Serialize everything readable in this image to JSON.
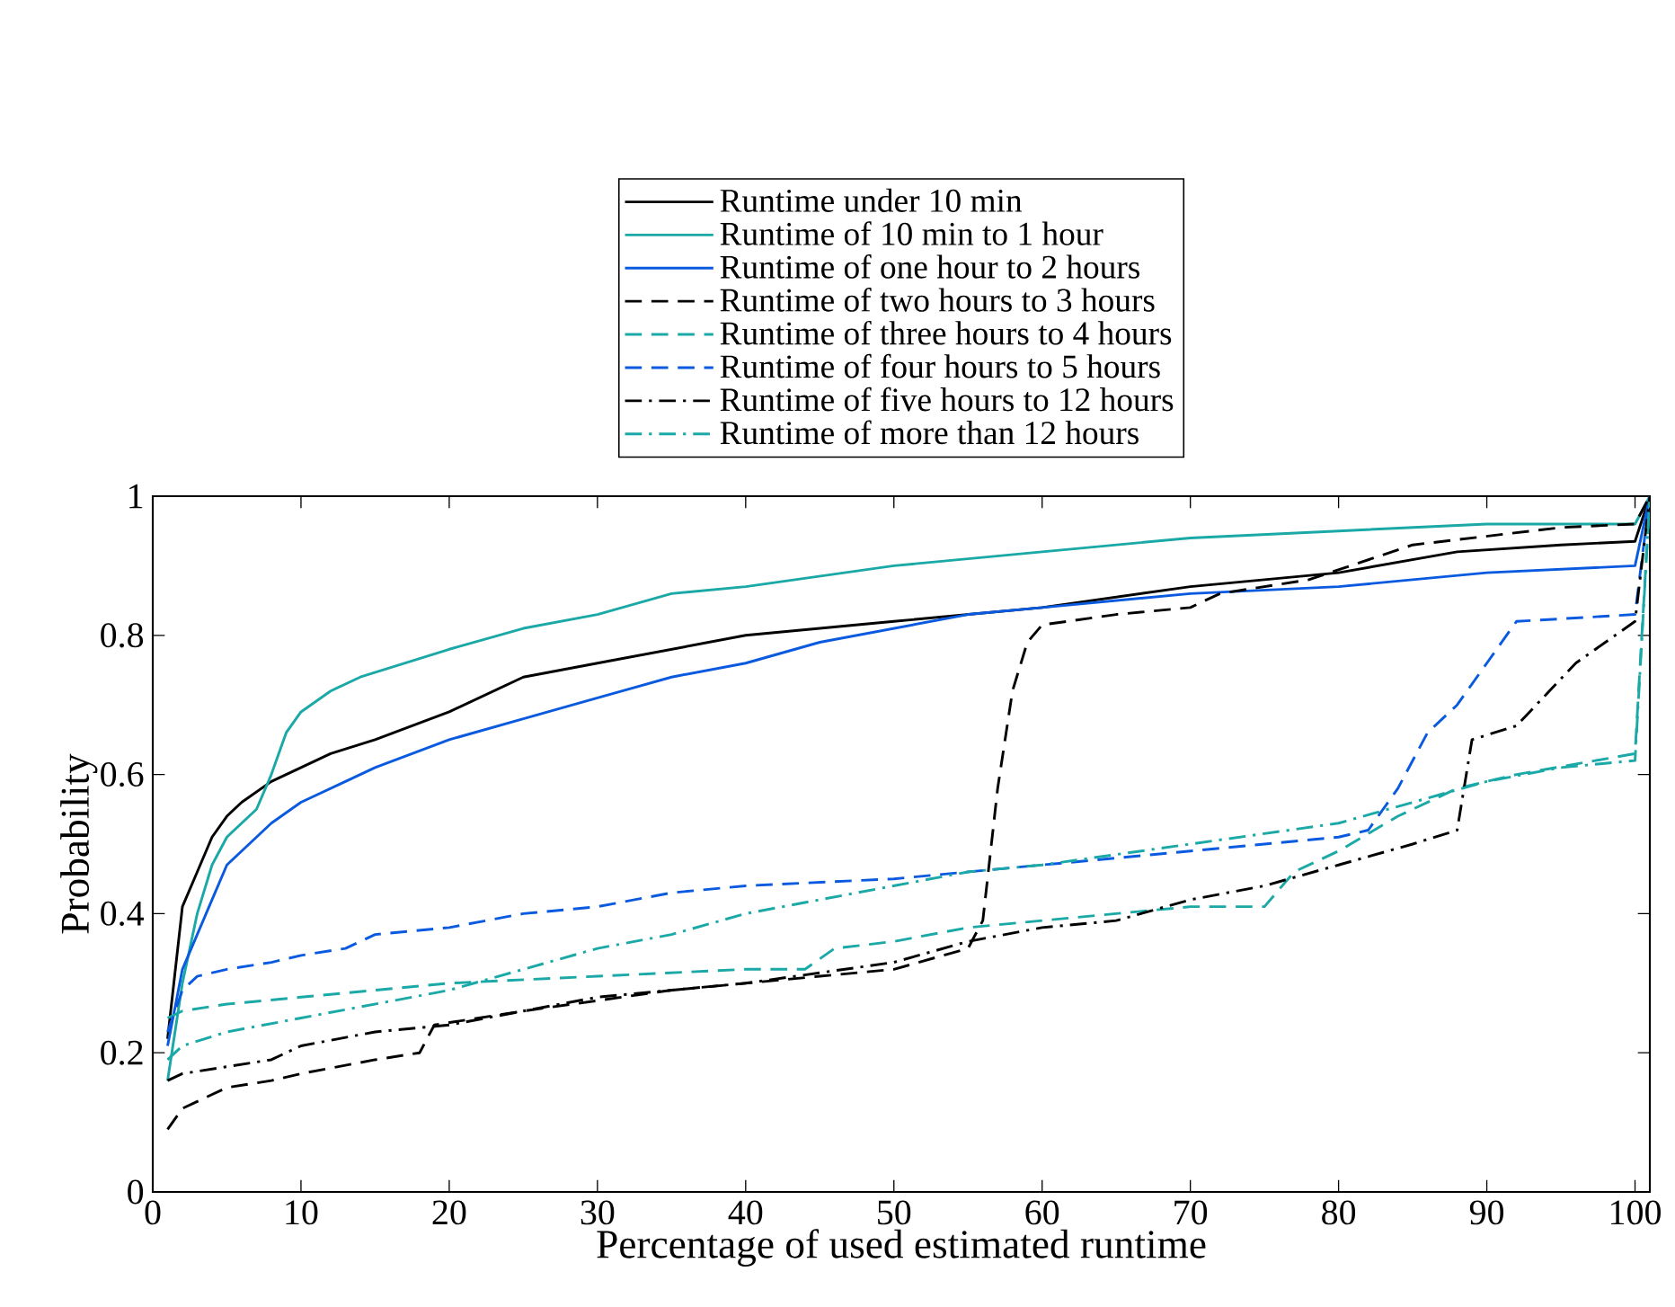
{
  "chart_data": {
    "type": "line",
    "xlabel": "Percentage of used estimated runtime",
    "ylabel": "Probability",
    "xlim": [
      0,
      101
    ],
    "ylim": [
      0,
      1
    ],
    "xticks": [
      0,
      10,
      20,
      30,
      40,
      50,
      60,
      70,
      80,
      90,
      100
    ],
    "yticks": [
      0,
      0.2,
      0.4,
      0.6,
      0.8,
      1
    ],
    "legend": "top",
    "series": [
      {
        "name": "Runtime under 10 min",
        "color": "#000000",
        "line_style": "solid",
        "x": [
          1,
          2,
          3,
          4,
          5,
          6,
          8,
          10,
          12,
          15,
          20,
          25,
          30,
          35,
          40,
          50,
          60,
          70,
          80,
          88,
          95,
          100,
          101
        ],
        "values": [
          0.22,
          0.41,
          0.46,
          0.51,
          0.54,
          0.56,
          0.59,
          0.61,
          0.63,
          0.65,
          0.69,
          0.74,
          0.76,
          0.78,
          0.8,
          0.82,
          0.84,
          0.87,
          0.89,
          0.92,
          0.93,
          0.935,
          1.0
        ]
      },
      {
        "name": "Runtime of 10 min to 1 hour",
        "color": "#1aa9a6",
        "line_style": "solid",
        "x": [
          1,
          2,
          3,
          4,
          5,
          7,
          8,
          9,
          10,
          12,
          14,
          20,
          25,
          30,
          35,
          40,
          50,
          60,
          70,
          80,
          90,
          100,
          101
        ],
        "values": [
          0.16,
          0.3,
          0.4,
          0.47,
          0.51,
          0.55,
          0.6,
          0.66,
          0.69,
          0.72,
          0.74,
          0.78,
          0.81,
          0.83,
          0.86,
          0.87,
          0.9,
          0.92,
          0.94,
          0.95,
          0.96,
          0.96,
          1.0
        ]
      },
      {
        "name": "Runtime of one hour to 2 hours",
        "color": "#0a5ae0",
        "line_style": "solid",
        "x": [
          1,
          2,
          3,
          4,
          5,
          6,
          8,
          10,
          13,
          15,
          20,
          25,
          30,
          35,
          40,
          45,
          50,
          55,
          60,
          70,
          80,
          90,
          100,
          101
        ],
        "values": [
          0.21,
          0.32,
          0.37,
          0.42,
          0.47,
          0.49,
          0.53,
          0.56,
          0.59,
          0.61,
          0.65,
          0.68,
          0.71,
          0.74,
          0.76,
          0.79,
          0.81,
          0.83,
          0.84,
          0.86,
          0.87,
          0.89,
          0.9,
          1.0
        ]
      },
      {
        "name": "Runtime of two hours to 3 hours",
        "color": "#000000",
        "line_style": "dashed",
        "x": [
          1,
          2,
          3,
          5,
          8,
          10,
          15,
          18,
          19,
          25,
          35,
          45,
          50,
          55,
          56,
          57,
          58,
          59,
          60,
          65,
          70,
          72,
          78,
          85,
          95,
          100,
          101
        ],
        "values": [
          0.09,
          0.12,
          0.13,
          0.15,
          0.16,
          0.17,
          0.19,
          0.2,
          0.24,
          0.26,
          0.29,
          0.31,
          0.32,
          0.35,
          0.39,
          0.58,
          0.72,
          0.79,
          0.815,
          0.83,
          0.84,
          0.86,
          0.88,
          0.93,
          0.955,
          0.96,
          1.0
        ]
      },
      {
        "name": "Runtime of three hours to 4 hours",
        "color": "#1aa9a6",
        "line_style": "dashed",
        "x": [
          1,
          2,
          5,
          10,
          20,
          30,
          40,
          44,
          46,
          50,
          55,
          60,
          70,
          75,
          77,
          80,
          84,
          88,
          92,
          100,
          101
        ],
        "values": [
          0.25,
          0.26,
          0.27,
          0.28,
          0.3,
          0.31,
          0.32,
          0.32,
          0.35,
          0.36,
          0.38,
          0.39,
          0.41,
          0.41,
          0.46,
          0.49,
          0.54,
          0.58,
          0.6,
          0.63,
          1.0
        ]
      },
      {
        "name": "Runtime of four hours to 5 hours",
        "color": "#0a5ae0",
        "line_style": "dashed",
        "x": [
          1,
          2,
          3,
          5,
          8,
          10,
          13,
          15,
          20,
          25,
          30,
          35,
          40,
          50,
          55,
          60,
          70,
          80,
          82,
          84,
          86,
          88,
          90,
          92,
          100,
          101
        ],
        "values": [
          0.23,
          0.29,
          0.31,
          0.32,
          0.33,
          0.34,
          0.35,
          0.37,
          0.38,
          0.4,
          0.41,
          0.43,
          0.44,
          0.45,
          0.46,
          0.47,
          0.49,
          0.51,
          0.52,
          0.58,
          0.66,
          0.7,
          0.76,
          0.82,
          0.83,
          1.0
        ]
      },
      {
        "name": "Runtime of five hours to 12 hours",
        "color": "#000000",
        "line_style": "dashdot",
        "x": [
          1,
          2,
          5,
          8,
          10,
          15,
          20,
          25,
          30,
          35,
          40,
          50,
          55,
          60,
          65,
          70,
          75,
          80,
          85,
          88,
          89,
          92,
          96,
          100,
          101
        ],
        "values": [
          0.16,
          0.17,
          0.18,
          0.19,
          0.21,
          0.23,
          0.24,
          0.26,
          0.28,
          0.29,
          0.3,
          0.33,
          0.36,
          0.38,
          0.39,
          0.42,
          0.44,
          0.47,
          0.5,
          0.52,
          0.65,
          0.67,
          0.76,
          0.82,
          1.0
        ]
      },
      {
        "name": "Runtime of more than 12 hours",
        "color": "#1aa9a6",
        "line_style": "dashdot",
        "x": [
          1,
          2,
          5,
          10,
          15,
          20,
          25,
          30,
          35,
          40,
          45,
          50,
          55,
          60,
          70,
          80,
          85,
          90,
          95,
          100,
          101
        ],
        "values": [
          0.19,
          0.21,
          0.23,
          0.25,
          0.27,
          0.29,
          0.32,
          0.35,
          0.37,
          0.4,
          0.42,
          0.44,
          0.46,
          0.47,
          0.5,
          0.53,
          0.56,
          0.59,
          0.61,
          0.62,
          1.0
        ]
      }
    ]
  }
}
